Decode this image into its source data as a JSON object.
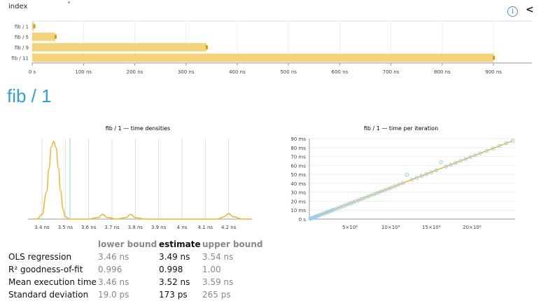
{
  "selector": {
    "value": "index",
    "chevron": "˅"
  },
  "header": {
    "info_icon": "info-icon",
    "collapse_icon": "chevron-left-icon",
    "collapse_glyph": "<"
  },
  "title": "fib / 1",
  "colors": {
    "bar": "#f3d47a",
    "bar_end": "#c9a21a",
    "density": "#f0b52a",
    "marker": "#8ecff5",
    "scatter": "#9ccfee",
    "fit": "#f0b52a",
    "title": "#2f9fe0"
  },
  "summary_chart": {
    "type": "bar",
    "orientation": "horizontal",
    "categories": [
      "fib / 1",
      "fib / 5",
      "fib / 9",
      "fib / 11"
    ],
    "values_ns": [
      3.5,
      45,
      340,
      900
    ],
    "x_ticks": [
      "0 s",
      "100 ns",
      "200 ns",
      "300 ns",
      "400 ns",
      "500 ns",
      "600 ns",
      "700 ns",
      "800 ns",
      "900 ns"
    ],
    "xlim": [
      0,
      975
    ]
  },
  "density_chart": {
    "type": "line",
    "title": "fib / 1 — time densities",
    "x_ticks": [
      "3.4 ns",
      "3.5 ns",
      "3.6 ns",
      "3.7 ns",
      "3.8 ns",
      "3.9 ns",
      "4 ns",
      "4.1 ns",
      "4.2 ns"
    ],
    "x": [
      3.36,
      3.38,
      3.4,
      3.42,
      3.43,
      3.44,
      3.45,
      3.46,
      3.47,
      3.48,
      3.49,
      3.5,
      3.52,
      3.55,
      3.6,
      3.64,
      3.66,
      3.68,
      3.72,
      3.76,
      3.78,
      3.8,
      3.84,
      3.9,
      4.0,
      4.1,
      4.15,
      4.18,
      4.2,
      4.22,
      4.26,
      4.3
    ],
    "y": [
      0,
      0.005,
      0.06,
      0.35,
      0.65,
      0.93,
      1.0,
      0.92,
      0.66,
      0.36,
      0.13,
      0.03,
      0,
      0,
      0,
      0.02,
      0.06,
      0.02,
      0,
      0.02,
      0.06,
      0.02,
      0,
      0,
      0,
      0,
      0,
      0.03,
      0.07,
      0.03,
      0,
      0
    ],
    "marker_x": 3.52,
    "xlim": [
      3.34,
      4.3
    ]
  },
  "chart_data": {
    "type": "scatter",
    "title": "fib / 1 — time per iteration",
    "y_ticks": [
      "0 s",
      "10 ms",
      "20 ms",
      "30 ms",
      "40 ms",
      "50 ms",
      "60 ms",
      "70 ms",
      "80 ms",
      "90 ms"
    ],
    "x_ticks": [
      "5×10⁶",
      "10×10⁶",
      "15×10⁶",
      "20×10⁶"
    ],
    "x_tick_values": [
      5000000,
      10000000,
      15000000,
      20000000
    ],
    "y_unit": "ms",
    "xlim": [
      0,
      25300000
    ],
    "ylim": [
      0,
      90
    ],
    "points": [
      [
        100000,
        0.35
      ],
      [
        200000,
        0.7
      ],
      [
        300000,
        1.05
      ],
      [
        400000,
        1.4
      ],
      [
        500000,
        1.75
      ],
      [
        600000,
        2.1
      ],
      [
        700000,
        2.45
      ],
      [
        800000,
        2.8
      ],
      [
        900000,
        3.15
      ],
      [
        1000000,
        3.5
      ],
      [
        1200000,
        4.2
      ],
      [
        1400000,
        4.9
      ],
      [
        1600000,
        5.6
      ],
      [
        1800000,
        6.3
      ],
      [
        2000000,
        7.0
      ],
      [
        2200000,
        7.7
      ],
      [
        2400000,
        8.4
      ],
      [
        2600000,
        9.1
      ],
      [
        2800000,
        9.8
      ],
      [
        3000000,
        10.5
      ],
      [
        3300000,
        11.5
      ],
      [
        3600000,
        12.6
      ],
      [
        3900000,
        13.6
      ],
      [
        4200000,
        14.7
      ],
      [
        4500000,
        15.7
      ],
      [
        4800000,
        16.8
      ],
      [
        5100000,
        17.8
      ],
      [
        5400000,
        18.9
      ],
      [
        5700000,
        19.9
      ],
      [
        6000000,
        21.0
      ],
      [
        6400000,
        22.3
      ],
      [
        6800000,
        23.8
      ],
      [
        7200000,
        25.2
      ],
      [
        7600000,
        26.6
      ],
      [
        8000000,
        28.0
      ],
      [
        8400000,
        29.4
      ],
      [
        8800000,
        30.8
      ],
      [
        9200000,
        32.2
      ],
      [
        9600000,
        33.6
      ],
      [
        10000000,
        35.0
      ],
      [
        10500000,
        36.7
      ],
      [
        11000000,
        38.5
      ],
      [
        11500000,
        40.2
      ],
      [
        12000000,
        49.5
      ],
      [
        12600000,
        44.1
      ],
      [
        13200000,
        46.2
      ],
      [
        13800000,
        48.3
      ],
      [
        14400000,
        50.4
      ],
      [
        15000000,
        52.5
      ],
      [
        15600000,
        54.6
      ],
      [
        16200000,
        63.5
      ],
      [
        16800000,
        58.8
      ],
      [
        17400000,
        60.9
      ],
      [
        18000000,
        63.0
      ],
      [
        18600000,
        65.1
      ],
      [
        19200000,
        67.2
      ],
      [
        19800000,
        69.3
      ],
      [
        20400000,
        71.4
      ],
      [
        21000000,
        73.5
      ],
      [
        21800000,
        76.3
      ],
      [
        22600000,
        79.1
      ],
      [
        23400000,
        81.9
      ],
      [
        24200000,
        84.7
      ],
      [
        25000000,
        87.5
      ]
    ],
    "fit": {
      "x": [
        0,
        25000000
      ],
      "y": [
        0,
        87.5
      ]
    }
  },
  "stats": {
    "headers": [
      "",
      "lower bound",
      "estimate",
      "upper bound"
    ],
    "rows": [
      [
        "OLS regression",
        "3.46 ns",
        "3.49 ns",
        "3.54 ns"
      ],
      [
        "R² goodness-of-fit",
        "0.996",
        "0.998",
        "1.00"
      ],
      [
        "Mean execution time",
        "3.46 ns",
        "3.52 ns",
        "3.59 ns"
      ],
      [
        "Standard deviation",
        "19.0 ps",
        "173 ps",
        "265 ps"
      ]
    ]
  }
}
